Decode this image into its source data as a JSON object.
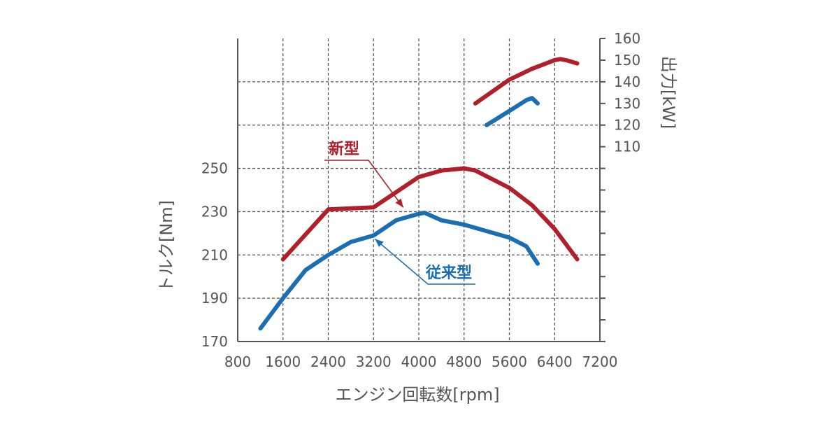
{
  "chart_data": {
    "type": "line",
    "xlabel": "エンジン回転数[rpm]",
    "ylabel_left": "トルク[Nm]",
    "ylabel_right": "出力[kW]",
    "x_ticks": [
      "800",
      "1600",
      "2400",
      "3200",
      "4000",
      "4800",
      "5600",
      "6400",
      "7200"
    ],
    "y_left_ticks": [
      "170",
      "190",
      "210",
      "230",
      "250"
    ],
    "y_right_ticks": [
      "110",
      "120",
      "130",
      "140",
      "150",
      "160"
    ],
    "xlim": [
      800,
      7200
    ],
    "ylim_left": [
      170,
      310
    ],
    "ylim_right": [
      20,
      160
    ],
    "grid": true,
    "colors": {
      "new": "#b01f2a",
      "old": "#1a6fb3"
    },
    "series": [
      {
        "name": "新型",
        "kind": "torque",
        "color": "#b01f2a",
        "x": [
          1600,
          2400,
          3200,
          4000,
          4400,
          4800,
          5000,
          5600,
          6000,
          6400,
          6800
        ],
        "y": [
          208,
          231,
          232,
          246,
          249,
          250,
          249,
          241,
          233,
          222,
          208
        ]
      },
      {
        "name": "従来型",
        "kind": "torque",
        "color": "#1a6fb3",
        "x": [
          1200,
          1600,
          2000,
          2400,
          2800,
          3200,
          3600,
          4000,
          4100,
          4400,
          4800,
          5200,
          5600,
          5900,
          6100
        ],
        "y": [
          176,
          190,
          203,
          210,
          216,
          219,
          226,
          229,
          229.5,
          226,
          224,
          221,
          218,
          214,
          206
        ]
      },
      {
        "name": "新型",
        "kind": "power",
        "color": "#b01f2a",
        "x": [
          5000,
          5600,
          6000,
          6400,
          6500,
          6600,
          6800
        ],
        "y": [
          130,
          141,
          146,
          150,
          150.5,
          150,
          148.5
        ]
      },
      {
        "name": "従来型",
        "kind": "power",
        "color": "#1a6fb3",
        "x": [
          5200,
          5600,
          5900,
          6000,
          6100
        ],
        "y": [
          120,
          126.5,
          131.5,
          132.5,
          130
        ]
      }
    ],
    "annotations": [
      {
        "text": "新型",
        "color": "#b01f2a",
        "points_to": {
          "x": 3700,
          "y": 241
        }
      },
      {
        "text": "従来型",
        "color": "#1a6fb3",
        "points_to": {
          "x": 3200,
          "y": 219
        }
      }
    ]
  }
}
